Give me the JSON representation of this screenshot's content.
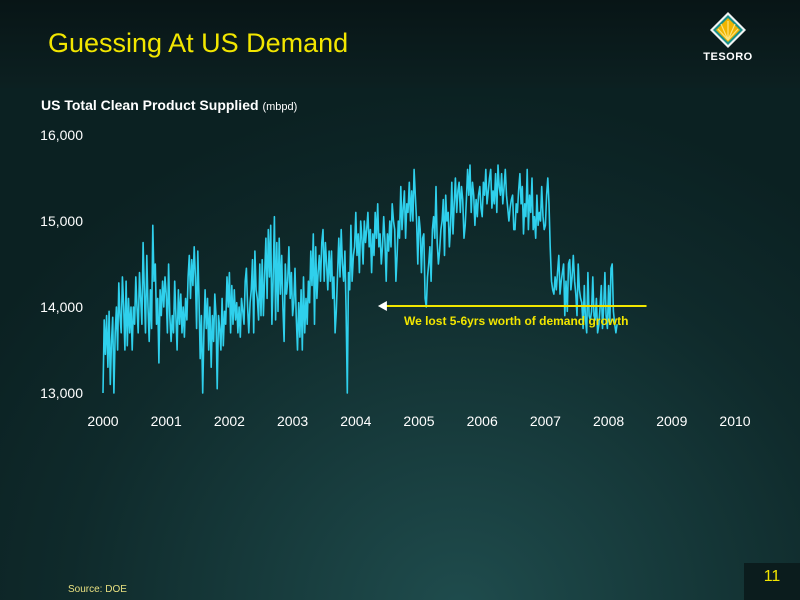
{
  "slide": {
    "title": "Guessing At US Demand",
    "logo_text": "TESORO",
    "source": "Source:  DOE",
    "page_number": "11"
  },
  "colors": {
    "title": "#f2e600",
    "line": "#2fd0ec",
    "annotation_text": "#f2e600",
    "axis_text": "#ffffff"
  },
  "chart_data": {
    "type": "line",
    "title": "US Total Clean Product Supplied",
    "title_unit": "(mbpd)",
    "xlabel": "",
    "ylabel": "",
    "xlim": [
      2000,
      2010.1
    ],
    "ylim": [
      13000,
      16000
    ],
    "x_ticks": [
      2000,
      2001,
      2002,
      2003,
      2004,
      2005,
      2006,
      2007,
      2008,
      2009,
      2010
    ],
    "y_ticks": [
      13000,
      14000,
      15000,
      16000
    ],
    "x_tick_labels": [
      "2000",
      "2001",
      "2002",
      "2003",
      "2004",
      "2005",
      "2006",
      "2007",
      "2008",
      "2009",
      "2010"
    ],
    "y_tick_labels": [
      "13,000",
      "14,000",
      "15,000",
      "16,000"
    ],
    "grid": false,
    "legend": "none",
    "annotation": {
      "text": "We lost 5-6yrs worth of demand growth",
      "arrow_from": [
        2008.6,
        14000
      ],
      "arrow_to": [
        2004.35,
        14000
      ]
    },
    "series": [
      {
        "frequency": "weekly",
        "x_start": 2000.0,
        "x_step": 0.01923,
        "values": [
          13000,
          13850,
          13450,
          13900,
          13300,
          13950,
          13100,
          13600,
          13880,
          13000,
          13700,
          14000,
          13500,
          14280,
          13900,
          13700,
          14350,
          14000,
          13500,
          14300,
          13550,
          14100,
          13700,
          14000,
          13500,
          14000,
          13800,
          14350,
          14000,
          13700,
          14400,
          14100,
          13800,
          14750,
          14200,
          13700,
          14600,
          14000,
          13600,
          14200,
          13750,
          14950,
          14300,
          14500,
          13800,
          14100,
          13350,
          14200,
          13900,
          14300,
          14000,
          14350,
          14150,
          13700,
          14500,
          13900,
          13600,
          13900,
          13700,
          14300,
          13900,
          13500,
          14200,
          13800,
          14150,
          13700,
          14000,
          13650,
          14100,
          13850,
          14350,
          14600,
          14100,
          14550,
          14250,
          14700,
          14350,
          13750,
          14650,
          14100,
          13400,
          13900,
          13000,
          13700,
          14200,
          13750,
          14100,
          13500,
          14000,
          13300,
          13900,
          13600,
          14150,
          13900,
          13050,
          13900,
          13750,
          13500,
          14100,
          13550,
          13950,
          13800,
          14350,
          14000,
          14400,
          13700,
          14250,
          13800,
          14200,
          13850,
          14050,
          13700,
          14000,
          13650,
          14100,
          13950,
          13800,
          14300,
          14450,
          14000,
          13700,
          14050,
          14200,
          14550,
          13700,
          14650,
          14200,
          14100,
          13850,
          14500,
          13900,
          14550,
          13900,
          14350,
          14800,
          14100,
          14900,
          14350,
          14950,
          13800,
          14300,
          15050,
          13850,
          14750,
          13950,
          14800,
          14150,
          14600,
          14000,
          13600,
          14500,
          14150,
          14300,
          14700,
          14100,
          14400,
          13900,
          14050,
          14450,
          13900,
          13500,
          14050,
          13650,
          14200,
          13500,
          14350,
          13700,
          14100,
          13800,
          14300,
          14050,
          14650,
          14250,
          14850,
          13800,
          14700,
          14100,
          14400,
          14600,
          14300,
          14750,
          14900,
          14300,
          14750,
          14500,
          14200,
          14650,
          14300,
          14650,
          14100,
          14350,
          13700,
          13950,
          14400,
          14800,
          14350,
          14900,
          14500,
          14300,
          14650,
          13950,
          13000,
          14400,
          14200,
          14950,
          14300,
          14600,
          14700,
          15100,
          14600,
          14850,
          14400,
          15000,
          14800,
          14500,
          15000,
          14750,
          14900,
          15100,
          14700,
          14900,
          14400,
          14850,
          14600,
          15100,
          14800,
          15200,
          14700,
          14850,
          14500,
          14700,
          15050,
          14750,
          14300,
          14850,
          14650,
          15000,
          14700,
          15200,
          15000,
          14900,
          14300,
          14600,
          15000,
          14800,
          15400,
          14900,
          15150,
          15350,
          14800,
          15200,
          15100,
          15450,
          15000,
          15350,
          15000,
          15600,
          15300,
          15000,
          14500,
          15050,
          14900,
          14400,
          14800,
          14850,
          14100,
          14000,
          14350,
          14500,
          14700,
          14300,
          14900,
          15050,
          14800,
          15400,
          14750,
          14500,
          14650,
          14900,
          15000,
          15250,
          14600,
          15300,
          15000,
          15100,
          14700,
          14950,
          15450,
          14850,
          15200,
          15500,
          15100,
          15350,
          15450,
          15100,
          15400,
          15250,
          14800,
          14950,
          15250,
          15600,
          15300,
          15650,
          15100,
          15450,
          15300,
          14950,
          15250,
          15050,
          15300,
          15400,
          15150,
          15050,
          15450,
          15300,
          15600,
          15200,
          15350,
          15500,
          15600,
          15150,
          15350,
          15200,
          15550,
          15100,
          15650,
          15400,
          15300,
          15550,
          15200,
          15400,
          15600,
          15300,
          15150,
          15000,
          15150,
          15250,
          15300,
          14900,
          14900,
          15200,
          15100,
          15350,
          15550,
          15200,
          15400,
          14850,
          15200,
          15050,
          15600,
          14900,
          15300,
          15100,
          15500,
          14900,
          15050,
          14800,
          15300,
          14950,
          15100,
          15000,
          15400,
          15050,
          14900,
          14950,
          15300,
          15500,
          15200,
          14700,
          14300,
          14200,
          14150,
          14350,
          14200,
          14400,
          14600,
          14150,
          14300,
          14400,
          14500,
          13900,
          14300,
          13950,
          14500,
          14550,
          14200,
          14350,
          14600,
          14300,
          14150,
          13900,
          14500,
          14200,
          14100,
          14050,
          13750,
          14250,
          13850,
          13700,
          14400,
          13900,
          13850,
          13950,
          14350,
          13900,
          13850,
          14100,
          13700,
          13800,
          14000,
          14250,
          13750,
          14000,
          14400,
          13900,
          13750,
          14250,
          13800,
          14450,
          14500,
          13950,
          13800,
          13700,
          13800
        ]
      }
    ]
  }
}
